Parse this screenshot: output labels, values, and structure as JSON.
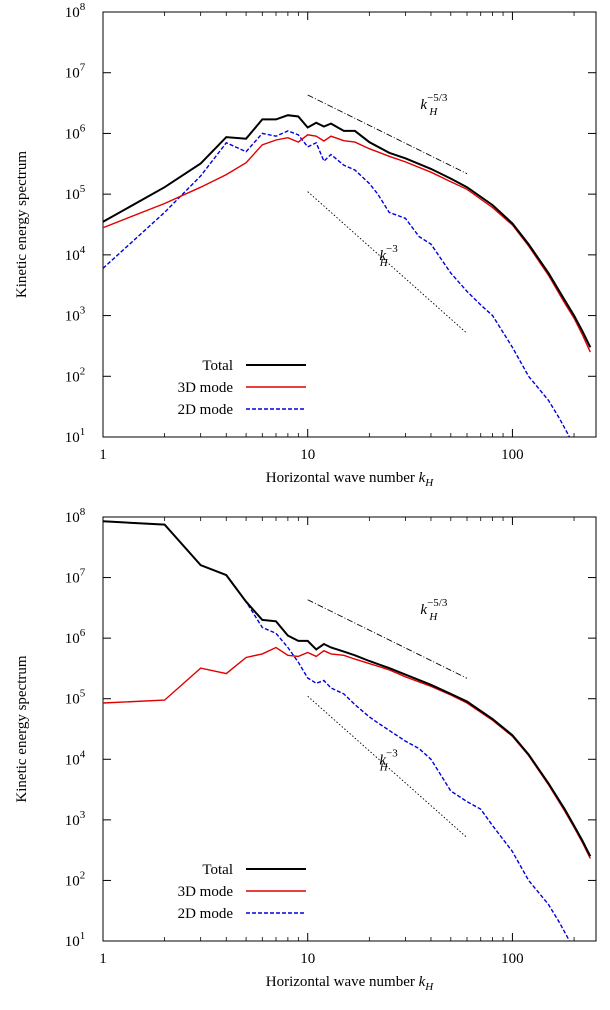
{
  "chart_data": [
    {
      "type": "line",
      "xlabel": "Horizontal wave number",
      "xlabel_symbol": "k",
      "xlabel_sub": "H",
      "ylabel": "Kinetic energy spectrum",
      "x_scale": "log",
      "y_scale": "log",
      "xlim": [
        1,
        256
      ],
      "ylim": [
        10,
        100000000
      ],
      "x_ticks": [
        {
          "value": 1,
          "label": "1"
        },
        {
          "value": 10,
          "label": "10"
        },
        {
          "value": 100,
          "label": "100"
        }
      ],
      "y_ticks": [
        {
          "value": 10,
          "base": "10",
          "exp": "1"
        },
        {
          "value": 100,
          "base": "10",
          "exp": "2"
        },
        {
          "value": 1000,
          "base": "10",
          "exp": "3"
        },
        {
          "value": 10000,
          "base": "10",
          "exp": "4"
        },
        {
          "value": 100000,
          "base": "10",
          "exp": "5"
        },
        {
          "value": 1000000,
          "base": "10",
          "exp": "6"
        },
        {
          "value": 10000000,
          "base": "10",
          "exp": "7"
        },
        {
          "value": 100000000,
          "base": "10",
          "exp": "8"
        }
      ],
      "legend_position": "bottom-left",
      "series": [
        {
          "name": "Total",
          "color": "#000000",
          "dash": "solid",
          "x": [
            1,
            2,
            3,
            4,
            5,
            6,
            7,
            8,
            9,
            10,
            11,
            12,
            13,
            15,
            17,
            20,
            25,
            30,
            40,
            50,
            60,
            80,
            100,
            120,
            150,
            180,
            200,
            220,
            240
          ],
          "y": [
            35000,
            130000,
            320000,
            870000,
            820000,
            1700000,
            1700000,
            2000000,
            1900000,
            1250000,
            1500000,
            1300000,
            1450000,
            1100000,
            1100000,
            720000,
            480000,
            390000,
            260000,
            180000,
            130000,
            66000,
            33000,
            15000,
            5000,
            1800,
            1000,
            550,
            300
          ]
        },
        {
          "name": "3D mode",
          "color": "#e00000",
          "dash": "solid",
          "x": [
            1,
            2,
            3,
            4,
            5,
            6,
            7,
            8,
            9,
            10,
            11,
            12,
            13,
            15,
            17,
            20,
            25,
            30,
            40,
            50,
            60,
            80,
            100,
            120,
            150,
            180,
            200,
            220,
            240
          ],
          "y": [
            28000,
            70000,
            130000,
            210000,
            330000,
            650000,
            780000,
            850000,
            720000,
            950000,
            900000,
            750000,
            900000,
            760000,
            720000,
            560000,
            420000,
            340000,
            230000,
            160000,
            120000,
            60000,
            31000,
            14000,
            4600,
            1600,
            900,
            480,
            250
          ]
        },
        {
          "name": "2D mode",
          "color": "#0000dd",
          "dash": "dashed",
          "x": [
            1,
            2,
            3,
            4,
            5,
            6,
            7,
            8,
            9,
            10,
            11,
            12,
            13,
            15,
            17,
            20,
            22,
            25,
            30,
            35,
            40,
            50,
            60,
            70,
            80,
            100,
            120,
            150,
            170,
            190
          ],
          "y": [
            6000,
            50000,
            200000,
            700000,
            500000,
            1000000,
            900000,
            1100000,
            950000,
            600000,
            700000,
            350000,
            450000,
            300000,
            250000,
            150000,
            100000,
            50000,
            40000,
            20000,
            15000,
            5000,
            2500,
            1500,
            1000,
            300,
            100,
            40,
            20,
            10
          ]
        }
      ],
      "reference_lines": [
        {
          "label_base": "k",
          "label_sub": "H",
          "label_exp": "−5/3",
          "style": "dashdot",
          "x_start": 10,
          "x_end": 60,
          "y_start": 4300000
        },
        {
          "label_base": "k",
          "label_sub": "H",
          "label_exp": "−3",
          "style": "dotted",
          "x_start": 10,
          "x_end": 60,
          "y_start": 110000
        }
      ]
    },
    {
      "type": "line",
      "xlabel": "Horizontal wave number",
      "xlabel_symbol": "k",
      "xlabel_sub": "H",
      "ylabel": "Kinetic energy spectrum",
      "x_scale": "log",
      "y_scale": "log",
      "xlim": [
        1,
        256
      ],
      "ylim": [
        10,
        100000000
      ],
      "x_ticks": [
        {
          "value": 1,
          "label": "1"
        },
        {
          "value": 10,
          "label": "10"
        },
        {
          "value": 100,
          "label": "100"
        }
      ],
      "y_ticks": [
        {
          "value": 10,
          "base": "10",
          "exp": "1"
        },
        {
          "value": 100,
          "base": "10",
          "exp": "2"
        },
        {
          "value": 1000,
          "base": "10",
          "exp": "3"
        },
        {
          "value": 10000,
          "base": "10",
          "exp": "4"
        },
        {
          "value": 100000,
          "base": "10",
          "exp": "5"
        },
        {
          "value": 1000000,
          "base": "10",
          "exp": "6"
        },
        {
          "value": 10000000,
          "base": "10",
          "exp": "7"
        },
        {
          "value": 100000000,
          "base": "10",
          "exp": "8"
        }
      ],
      "legend_position": "bottom-left",
      "series": [
        {
          "name": "Total",
          "color": "#000000",
          "dash": "solid",
          "x": [
            1,
            2,
            3,
            4,
            5,
            6,
            7,
            8,
            9,
            10,
            11,
            12,
            13,
            15,
            17,
            20,
            25,
            30,
            40,
            50,
            60,
            80,
            100,
            120,
            150,
            180,
            200,
            220,
            240
          ],
          "y": [
            85000000,
            75000000,
            16000000,
            11000000,
            4000000,
            2000000,
            1900000,
            1100000,
            900000,
            900000,
            650000,
            800000,
            700000,
            600000,
            520000,
            420000,
            320000,
            250000,
            170000,
            120000,
            90000,
            46000,
            25000,
            12000,
            4000,
            1500,
            800,
            450,
            250
          ]
        },
        {
          "name": "3D mode",
          "color": "#e00000",
          "dash": "solid",
          "x": [
            1,
            2,
            3,
            4,
            5,
            6,
            7,
            8,
            9,
            10,
            11,
            12,
            13,
            15,
            17,
            20,
            25,
            30,
            40,
            50,
            60,
            80,
            100,
            120,
            150,
            180,
            200,
            220,
            240
          ],
          "y": [
            85000,
            95000,
            320000,
            260000,
            480000,
            550000,
            700000,
            520000,
            500000,
            580000,
            500000,
            620000,
            550000,
            520000,
            450000,
            380000,
            300000,
            230000,
            160000,
            115000,
            85000,
            44000,
            24000,
            11500,
            3800,
            1400,
            750,
            420,
            230
          ]
        },
        {
          "name": "2D mode",
          "color": "#0000dd",
          "dash": "dashed",
          "x": [
            1,
            2,
            3,
            4,
            5,
            6,
            7,
            8,
            9,
            10,
            11,
            12,
            13,
            15,
            17,
            20,
            22,
            25,
            30,
            35,
            40,
            50,
            60,
            70,
            80,
            100,
            120,
            150,
            170,
            190
          ],
          "y": [
            85000000,
            75000000,
            16000000,
            11000000,
            4000000,
            1500000,
            1200000,
            700000,
            400000,
            220000,
            180000,
            200000,
            150000,
            120000,
            80000,
            50000,
            40000,
            30000,
            20000,
            15000,
            10000,
            3000,
            2000,
            1500,
            800,
            300,
            100,
            40,
            20,
            10
          ]
        }
      ],
      "reference_lines": [
        {
          "label_base": "k",
          "label_sub": "H",
          "label_exp": "−5/3",
          "style": "dashdot",
          "x_start": 10,
          "x_end": 60,
          "y_start": 4300000
        },
        {
          "label_base": "k",
          "label_sub": "H",
          "label_exp": "−3",
          "style": "dotted",
          "x_start": 10,
          "x_end": 60,
          "y_start": 110000
        }
      ]
    }
  ]
}
